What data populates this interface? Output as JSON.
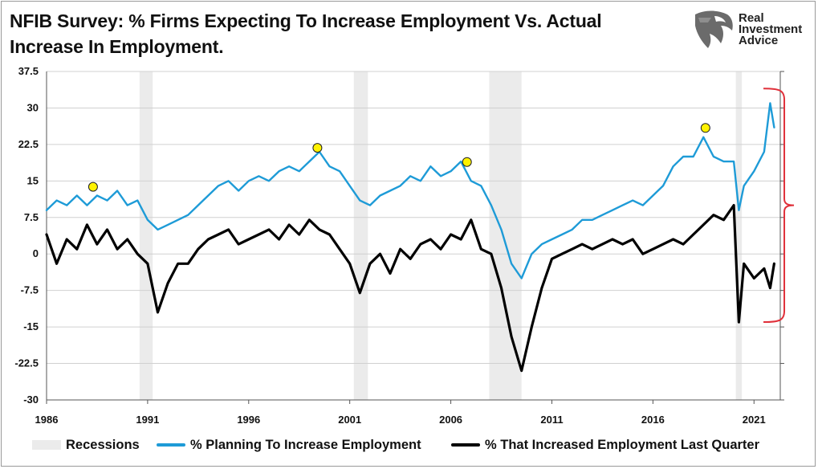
{
  "title": {
    "line1": "NFIB Survey:  % Firms Expecting To Increase Employment Vs. Actual",
    "line2": "Increase In Employment."
  },
  "logo": {
    "line1": "Real",
    "line2": "Investment",
    "line3": "Advice"
  },
  "colors": {
    "planning": "#1E9BD7",
    "actual": "#000000",
    "recession": "#EBEBEB",
    "marker": "#FFF200",
    "bracket": "#E0303A",
    "grid": "#D0D0D0"
  },
  "chart_data": {
    "type": "line",
    "ylim": [
      -30,
      37.5
    ],
    "xlim": [
      1986,
      2022.3
    ],
    "y_ticks": [
      "37.5",
      "30",
      "22.5",
      "15",
      "7.5",
      "0",
      "-7.5",
      "-15",
      "-22.5",
      "-30"
    ],
    "x_ticks": [
      "1986",
      "1991",
      "1996",
      "2001",
      "2006",
      "2011",
      "2016",
      "2021"
    ],
    "grid": "horizontal",
    "legend_position": "bottom",
    "recessions": [
      [
        1990.6,
        1991.25
      ],
      [
        2001.2,
        2001.9
      ],
      [
        2007.9,
        2009.5
      ],
      [
        2020.1,
        2020.4
      ]
    ],
    "highlight_points": [
      {
        "x": 1988.3,
        "y": 13.8
      },
      {
        "x": 1999.4,
        "y": 21.8
      },
      {
        "x": 2006.8,
        "y": 18.9
      },
      {
        "x": 2018.6,
        "y": 25.9
      }
    ],
    "bracket": {
      "x": 2022.5,
      "y_top": 34,
      "y_bottom": -14
    },
    "series": [
      {
        "name": "% Planning To Increase Employment",
        "x": [
          1986.0,
          1986.5,
          1987.0,
          1987.5,
          1988.0,
          1988.5,
          1989.0,
          1989.5,
          1990.0,
          1990.5,
          1991.0,
          1991.5,
          1992.0,
          1992.5,
          1993.0,
          1993.5,
          1994.0,
          1994.5,
          1995.0,
          1995.5,
          1996.0,
          1996.5,
          1997.0,
          1997.5,
          1998.0,
          1998.5,
          1999.0,
          1999.5,
          2000.0,
          2000.5,
          2001.0,
          2001.5,
          2002.0,
          2002.5,
          2003.0,
          2003.5,
          2004.0,
          2004.5,
          2005.0,
          2005.5,
          2006.0,
          2006.5,
          2007.0,
          2007.5,
          2008.0,
          2008.5,
          2009.0,
          2009.5,
          2010.0,
          2010.5,
          2011.0,
          2011.5,
          2012.0,
          2012.5,
          2013.0,
          2013.5,
          2014.0,
          2014.5,
          2015.0,
          2015.5,
          2016.0,
          2016.5,
          2017.0,
          2017.5,
          2018.0,
          2018.5,
          2019.0,
          2019.5,
          2020.0,
          2020.25,
          2020.5,
          2021.0,
          2021.5,
          2021.8,
          2022.0
        ],
        "values": [
          9,
          11,
          10,
          12,
          10,
          12,
          11,
          13,
          10,
          11,
          7,
          5,
          6,
          7,
          8,
          10,
          12,
          14,
          15,
          13,
          15,
          16,
          15,
          17,
          18,
          17,
          19,
          21,
          18,
          17,
          14,
          11,
          10,
          12,
          13,
          14,
          16,
          15,
          18,
          16,
          17,
          19,
          15,
          14,
          10,
          5,
          -2,
          -5,
          0,
          2,
          3,
          4,
          5,
          7,
          7,
          8,
          9,
          10,
          11,
          10,
          12,
          14,
          18,
          20,
          20,
          24,
          20,
          19,
          19,
          9,
          14,
          17,
          21,
          31,
          26
        ]
      },
      {
        "name": "% That Increased Employment Last Quarter",
        "x": [
          1986.0,
          1986.5,
          1987.0,
          1987.5,
          1988.0,
          1988.5,
          1989.0,
          1989.5,
          1990.0,
          1990.5,
          1991.0,
          1991.5,
          1992.0,
          1992.5,
          1993.0,
          1993.5,
          1994.0,
          1994.5,
          1995.0,
          1995.5,
          1996.0,
          1996.5,
          1997.0,
          1997.5,
          1998.0,
          1998.5,
          1999.0,
          1999.5,
          2000.0,
          2000.5,
          2001.0,
          2001.5,
          2002.0,
          2002.5,
          2003.0,
          2003.5,
          2004.0,
          2004.5,
          2005.0,
          2005.5,
          2006.0,
          2006.5,
          2007.0,
          2007.5,
          2008.0,
          2008.5,
          2009.0,
          2009.5,
          2010.0,
          2010.5,
          2011.0,
          2011.5,
          2012.0,
          2012.5,
          2013.0,
          2013.5,
          2014.0,
          2014.5,
          2015.0,
          2015.5,
          2016.0,
          2016.5,
          2017.0,
          2017.5,
          2018.0,
          2018.5,
          2019.0,
          2019.5,
          2020.0,
          2020.25,
          2020.5,
          2021.0,
          2021.5,
          2021.8,
          2022.0
        ],
        "values": [
          4,
          -2,
          3,
          1,
          6,
          2,
          5,
          1,
          3,
          0,
          -2,
          -12,
          -6,
          -2,
          -2,
          1,
          3,
          4,
          5,
          2,
          3,
          4,
          5,
          3,
          6,
          4,
          7,
          5,
          4,
          1,
          -2,
          -8,
          -2,
          0,
          -4,
          1,
          -1,
          2,
          3,
          1,
          4,
          3,
          7,
          1,
          0,
          -7,
          -17,
          -24,
          -15,
          -7,
          -1,
          0,
          1,
          2,
          1,
          2,
          3,
          2,
          3,
          0,
          1,
          2,
          3,
          2,
          4,
          6,
          8,
          7,
          10,
          -14,
          -2,
          -5,
          -3,
          -7,
          -2
        ]
      }
    ]
  },
  "legend": {
    "recessions": "Recessions",
    "planning": "% Planning To Increase Employment",
    "actual": "% That Increased Employment Last Quarter"
  }
}
